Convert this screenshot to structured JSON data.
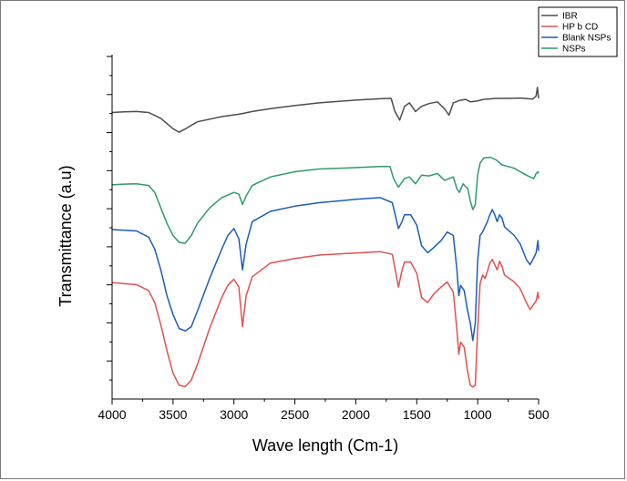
{
  "chart_data": {
    "type": "line",
    "title": "",
    "xlabel": "Wave length (Cm-1)",
    "ylabel": "Transmittance (a.u)",
    "xlim": [
      4000,
      500
    ],
    "ylim": [
      0,
      100
    ],
    "x_ticks": [
      "4000",
      "3500",
      "3000",
      "2500",
      "2000",
      "1500",
      "1000",
      "500"
    ],
    "x_tick_values": [
      4000,
      3500,
      3000,
      2500,
      2000,
      1500,
      1000,
      500
    ],
    "y_tick_labels": "none",
    "grid": false,
    "legend_position": "top-right",
    "series": [
      {
        "name": "IBR",
        "color": "#4d4d4d",
        "points": [
          [
            4000,
            83.2
          ],
          [
            3900,
            83.4
          ],
          [
            3800,
            83.5
          ],
          [
            3700,
            83.2
          ],
          [
            3600,
            81.5
          ],
          [
            3500,
            78.5
          ],
          [
            3450,
            77.5
          ],
          [
            3400,
            78.4
          ],
          [
            3300,
            80.5
          ],
          [
            3100,
            82.0
          ],
          [
            2960,
            82.7
          ],
          [
            2930,
            82.9
          ],
          [
            2850,
            83.5
          ],
          [
            2700,
            84.3
          ],
          [
            2500,
            85.2
          ],
          [
            2300,
            86.0
          ],
          [
            2000,
            86.8
          ],
          [
            1800,
            87.2
          ],
          [
            1710,
            87.3
          ],
          [
            1680,
            83.6
          ],
          [
            1640,
            81.0
          ],
          [
            1600,
            85.0
          ],
          [
            1560,
            86.0
          ],
          [
            1510,
            83.5
          ],
          [
            1460,
            85.0
          ],
          [
            1400,
            85.8
          ],
          [
            1330,
            86.3
          ],
          [
            1270,
            84.2
          ],
          [
            1235,
            82.4
          ],
          [
            1200,
            86.0
          ],
          [
            1150,
            86.7
          ],
          [
            1100,
            87.0
          ],
          [
            1060,
            86.3
          ],
          [
            1010,
            86.5
          ],
          [
            950,
            87.0
          ],
          [
            850,
            87.3
          ],
          [
            750,
            87.3
          ],
          [
            650,
            87.4
          ],
          [
            550,
            87.1
          ],
          [
            520,
            88.0
          ],
          [
            510,
            90.5
          ],
          [
            500,
            87.3
          ]
        ]
      },
      {
        "name": "HP b CD",
        "color": "#e05050",
        "points": [
          [
            4000,
            33.8
          ],
          [
            3900,
            33.5
          ],
          [
            3800,
            33.2
          ],
          [
            3700,
            31.5
          ],
          [
            3650,
            28.0
          ],
          [
            3600,
            21.5
          ],
          [
            3550,
            14.0
          ],
          [
            3500,
            7.5
          ],
          [
            3450,
            4.0
          ],
          [
            3400,
            3.6
          ],
          [
            3350,
            5.5
          ],
          [
            3300,
            10.0
          ],
          [
            3200,
            20.5
          ],
          [
            3100,
            29.5
          ],
          [
            3050,
            33.0
          ],
          [
            3000,
            34.8
          ],
          [
            2960,
            32.5
          ],
          [
            2930,
            21.0
          ],
          [
            2900,
            30.0
          ],
          [
            2850,
            35.5
          ],
          [
            2700,
            39.5
          ],
          [
            2500,
            40.8
          ],
          [
            2300,
            41.8
          ],
          [
            2000,
            42.4
          ],
          [
            1800,
            42.8
          ],
          [
            1700,
            42.0
          ],
          [
            1650,
            32.5
          ],
          [
            1620,
            37.5
          ],
          [
            1600,
            39.8
          ],
          [
            1550,
            39.8
          ],
          [
            1500,
            36.5
          ],
          [
            1460,
            29.5
          ],
          [
            1410,
            28.0
          ],
          [
            1360,
            30.5
          ],
          [
            1300,
            32.5
          ],
          [
            1250,
            34.0
          ],
          [
            1200,
            31.0
          ],
          [
            1170,
            20.0
          ],
          [
            1155,
            13.0
          ],
          [
            1140,
            16.5
          ],
          [
            1110,
            15.0
          ],
          [
            1085,
            8.5
          ],
          [
            1060,
            4.0
          ],
          [
            1040,
            3.5
          ],
          [
            1020,
            4.0
          ],
          [
            1000,
            20.0
          ],
          [
            980,
            33.5
          ],
          [
            960,
            36.0
          ],
          [
            940,
            35.0
          ],
          [
            920,
            37.0
          ],
          [
            900,
            39.5
          ],
          [
            880,
            40.5
          ],
          [
            860,
            39.0
          ],
          [
            840,
            37.5
          ],
          [
            820,
            40.0
          ],
          [
            800,
            38.5
          ],
          [
            780,
            36.0
          ],
          [
            700,
            34.0
          ],
          [
            650,
            32.0
          ],
          [
            600,
            28.0
          ],
          [
            570,
            26.0
          ],
          [
            540,
            27.5
          ],
          [
            520,
            28.5
          ],
          [
            505,
            31.0
          ],
          [
            500,
            29.0
          ]
        ]
      },
      {
        "name": "Blank NSPs",
        "color": "#1a5cb8",
        "points": [
          [
            4000,
            49.2
          ],
          [
            3900,
            49.0
          ],
          [
            3800,
            48.8
          ],
          [
            3700,
            47.0
          ],
          [
            3650,
            43.5
          ],
          [
            3600,
            37.5
          ],
          [
            3550,
            30.0
          ],
          [
            3500,
            24.5
          ],
          [
            3450,
            20.5
          ],
          [
            3400,
            19.8
          ],
          [
            3350,
            21.0
          ],
          [
            3300,
            25.5
          ],
          [
            3200,
            35.0
          ],
          [
            3100,
            43.5
          ],
          [
            3050,
            47.5
          ],
          [
            3000,
            49.5
          ],
          [
            2960,
            46.5
          ],
          [
            2930,
            37.5
          ],
          [
            2900,
            45.0
          ],
          [
            2850,
            51.5
          ],
          [
            2700,
            54.5
          ],
          [
            2500,
            56.0
          ],
          [
            2300,
            57.0
          ],
          [
            2000,
            58.0
          ],
          [
            1800,
            58.5
          ],
          [
            1700,
            57.0
          ],
          [
            1650,
            49.5
          ],
          [
            1620,
            51.5
          ],
          [
            1600,
            53.5
          ],
          [
            1550,
            53.5
          ],
          [
            1500,
            50.5
          ],
          [
            1460,
            44.5
          ],
          [
            1410,
            42.5
          ],
          [
            1360,
            44.0
          ],
          [
            1300,
            46.0
          ],
          [
            1250,
            48.5
          ],
          [
            1200,
            47.5
          ],
          [
            1170,
            37.5
          ],
          [
            1155,
            30.0
          ],
          [
            1140,
            33.0
          ],
          [
            1110,
            31.5
          ],
          [
            1085,
            26.0
          ],
          [
            1060,
            22.0
          ],
          [
            1040,
            17.0
          ],
          [
            1020,
            22.0
          ],
          [
            1000,
            40.0
          ],
          [
            980,
            47.5
          ],
          [
            960,
            48.5
          ],
          [
            940,
            50.0
          ],
          [
            920,
            51.5
          ],
          [
            900,
            53.5
          ],
          [
            880,
            55.0
          ],
          [
            860,
            53.5
          ],
          [
            840,
            51.5
          ],
          [
            820,
            53.5
          ],
          [
            800,
            52.5
          ],
          [
            780,
            50.0
          ],
          [
            700,
            47.5
          ],
          [
            650,
            45.0
          ],
          [
            600,
            40.5
          ],
          [
            570,
            39.0
          ],
          [
            540,
            41.0
          ],
          [
            520,
            42.5
          ],
          [
            505,
            46.0
          ],
          [
            500,
            43.0
          ]
        ]
      },
      {
        "name": "NSPs",
        "color": "#2e9a68",
        "points": [
          [
            4000,
            62.2
          ],
          [
            3900,
            62.4
          ],
          [
            3800,
            62.5
          ],
          [
            3700,
            62.0
          ],
          [
            3650,
            60.0
          ],
          [
            3600,
            55.5
          ],
          [
            3550,
            51.0
          ],
          [
            3500,
            47.5
          ],
          [
            3450,
            45.5
          ],
          [
            3400,
            45.2
          ],
          [
            3350,
            47.5
          ],
          [
            3300,
            51.0
          ],
          [
            3200,
            55.5
          ],
          [
            3100,
            58.5
          ],
          [
            3000,
            60.0
          ],
          [
            2960,
            59.5
          ],
          [
            2930,
            56.5
          ],
          [
            2900,
            59.0
          ],
          [
            2850,
            62.0
          ],
          [
            2700,
            64.5
          ],
          [
            2500,
            66.0
          ],
          [
            2300,
            66.8
          ],
          [
            2000,
            67.2
          ],
          [
            1800,
            67.5
          ],
          [
            1720,
            67.5
          ],
          [
            1690,
            64.0
          ],
          [
            1650,
            61.5
          ],
          [
            1600,
            64.0
          ],
          [
            1560,
            64.5
          ],
          [
            1510,
            62.5
          ],
          [
            1460,
            65.0
          ],
          [
            1400,
            64.8
          ],
          [
            1330,
            65.5
          ],
          [
            1270,
            63.5
          ],
          [
            1235,
            64.0
          ],
          [
            1200,
            64.5
          ],
          [
            1170,
            61.0
          ],
          [
            1150,
            60.0
          ],
          [
            1120,
            62.5
          ],
          [
            1080,
            61.0
          ],
          [
            1060,
            57.5
          ],
          [
            1040,
            55.0
          ],
          [
            1020,
            56.5
          ],
          [
            1000,
            65.0
          ],
          [
            980,
            68.5
          ],
          [
            950,
            70.0
          ],
          [
            900,
            70.2
          ],
          [
            850,
            69.5
          ],
          [
            800,
            68.0
          ],
          [
            700,
            67.0
          ],
          [
            650,
            66.0
          ],
          [
            600,
            65.0
          ],
          [
            570,
            64.5
          ],
          [
            540,
            64.0
          ],
          [
            520,
            65.5
          ],
          [
            505,
            66.0
          ],
          [
            500,
            65.5
          ]
        ]
      }
    ]
  }
}
